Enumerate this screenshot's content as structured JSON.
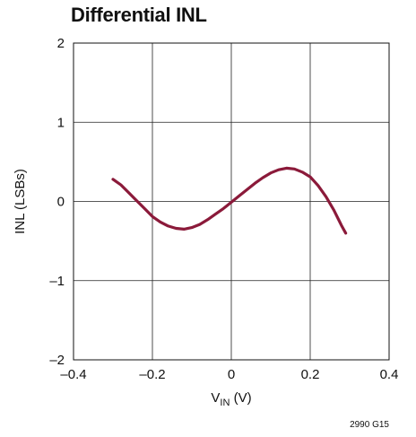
{
  "chart_data": {
    "type": "line",
    "title": "Differential INL",
    "xlabel_main": "V",
    "xlabel_sub": "IN",
    "xlabel_suffix": " (V)",
    "ylabel": "INL (LSBs)",
    "xlim": [
      -0.4,
      0.4
    ],
    "ylim": [
      -2,
      2
    ],
    "xticks": [
      -0.4,
      -0.2,
      0,
      0.2,
      0.4
    ],
    "xtick_labels": [
      "–0.4",
      "–0.2",
      "0",
      "0.2",
      "0.4"
    ],
    "yticks": [
      2,
      1,
      0,
      -1,
      -2
    ],
    "ytick_labels": [
      "2",
      "1",
      "0",
      "–1",
      "–2"
    ],
    "grid": true,
    "series": [
      {
        "color": "#8b1a3a",
        "x": [
          -0.3,
          -0.28,
          -0.26,
          -0.24,
          -0.22,
          -0.2,
          -0.18,
          -0.16,
          -0.14,
          -0.12,
          -0.1,
          -0.08,
          -0.06,
          -0.04,
          -0.02,
          0.0,
          0.02,
          0.04,
          0.06,
          0.08,
          0.1,
          0.12,
          0.14,
          0.16,
          0.18,
          0.2,
          0.22,
          0.24,
          0.26,
          0.28,
          0.29
        ],
        "y": [
          0.28,
          0.21,
          0.11,
          0.01,
          -0.09,
          -0.19,
          -0.26,
          -0.31,
          -0.34,
          -0.35,
          -0.33,
          -0.29,
          -0.23,
          -0.16,
          -0.09,
          -0.01,
          0.07,
          0.15,
          0.23,
          0.3,
          0.36,
          0.4,
          0.42,
          0.41,
          0.37,
          0.31,
          0.2,
          0.06,
          -0.11,
          -0.31,
          -0.4
        ]
      }
    ],
    "note": "2990 G15"
  }
}
